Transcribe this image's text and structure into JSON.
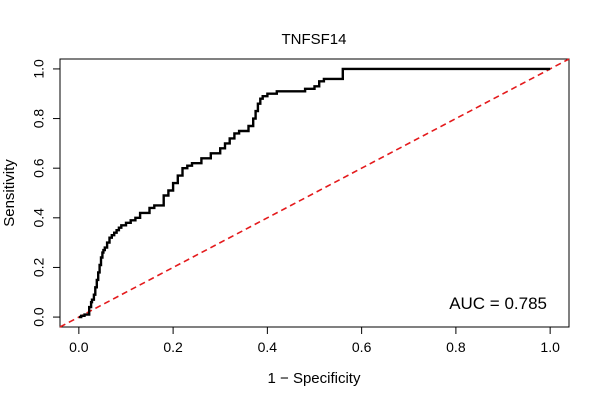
{
  "chart_data": {
    "type": "line",
    "title": "TNFSF14",
    "xlabel": "1 − Specificity",
    "ylabel": "Sensitivity",
    "xlim": [
      -0.04,
      1.04
    ],
    "ylim": [
      -0.04,
      1.04
    ],
    "x_ticks": [
      0.0,
      0.2,
      0.4,
      0.6,
      0.8,
      1.0
    ],
    "x_tick_labels": [
      "0.0",
      "0.2",
      "0.4",
      "0.6",
      "0.8",
      "1.0"
    ],
    "y_ticks": [
      0.0,
      0.2,
      0.4,
      0.6,
      0.8,
      1.0
    ],
    "y_tick_labels": [
      "0.0",
      "0.2",
      "0.4",
      "0.6",
      "0.8",
      "1.0"
    ],
    "grid": false,
    "annotation": "AUC = 0.785",
    "series": [
      {
        "style": "step",
        "color": "#000000",
        "x": [
          0.0,
          0.005,
          0.012,
          0.022,
          0.022,
          0.026,
          0.028,
          0.032,
          0.035,
          0.038,
          0.041,
          0.044,
          0.047,
          0.05,
          0.052,
          0.055,
          0.06,
          0.065,
          0.07,
          0.075,
          0.08,
          0.085,
          0.09,
          0.095,
          0.1,
          0.11,
          0.12,
          0.13,
          0.15,
          0.16,
          0.18,
          0.19,
          0.2,
          0.21,
          0.22,
          0.23,
          0.24,
          0.26,
          0.28,
          0.3,
          0.31,
          0.32,
          0.33,
          0.34,
          0.36,
          0.37,
          0.375,
          0.38,
          0.385,
          0.39,
          0.4,
          0.42,
          0.46,
          0.48,
          0.5,
          0.51,
          0.52,
          0.55,
          0.56,
          0.9,
          1.0
        ],
        "y": [
          0.0,
          0.005,
          0.01,
          0.02,
          0.04,
          0.06,
          0.07,
          0.09,
          0.12,
          0.15,
          0.18,
          0.21,
          0.24,
          0.26,
          0.27,
          0.28,
          0.3,
          0.32,
          0.33,
          0.34,
          0.35,
          0.36,
          0.37,
          0.37,
          0.38,
          0.39,
          0.4,
          0.42,
          0.44,
          0.45,
          0.49,
          0.51,
          0.54,
          0.57,
          0.6,
          0.61,
          0.62,
          0.64,
          0.66,
          0.68,
          0.7,
          0.72,
          0.74,
          0.75,
          0.77,
          0.8,
          0.83,
          0.86,
          0.88,
          0.89,
          0.9,
          0.91,
          0.91,
          0.92,
          0.93,
          0.95,
          0.96,
          0.96,
          1.0,
          1.0,
          1.0
        ]
      },
      {
        "style": "dashed",
        "color": "#e41a1c",
        "x": [
          -0.04,
          1.04
        ],
        "y": [
          -0.04,
          1.04
        ]
      }
    ]
  }
}
